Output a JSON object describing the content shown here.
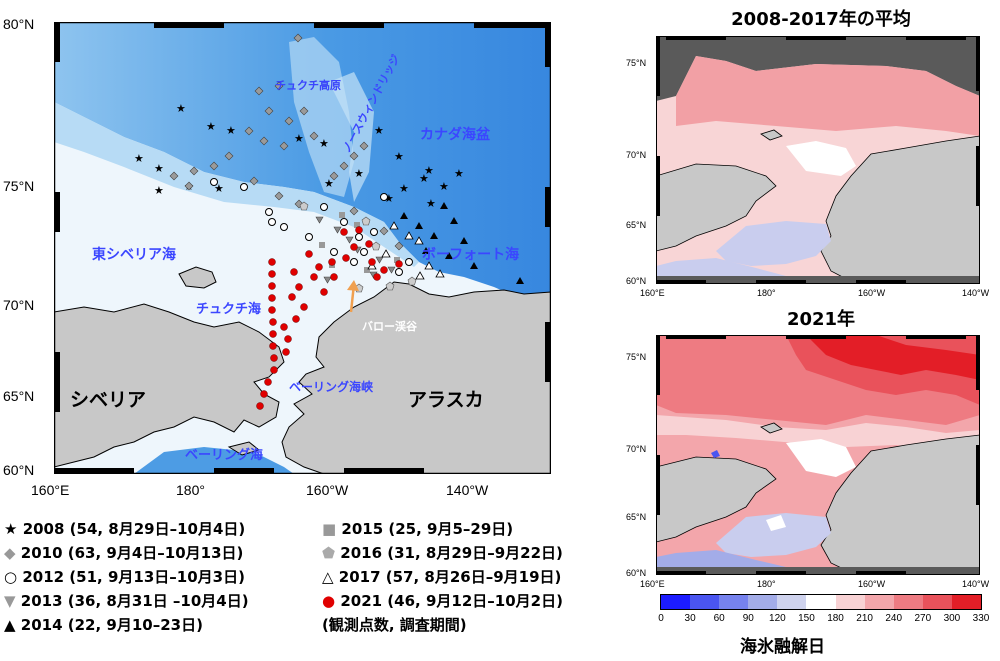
{
  "main_map": {
    "lat_labels": [
      "80°N",
      "75°N",
      "70°N",
      "65°N",
      "60°N"
    ],
    "lon_labels": [
      "160°E",
      "180°",
      "160°W",
      "140°W"
    ],
    "places": {
      "chukchi_plateau": "チュクチ高原",
      "northwind_ridge": "ノースウィンドリッジ",
      "canada_basin": "カナダ海盆",
      "east_siberian_sea": "東シベリア海",
      "beaufort_sea": "ボーフォート海",
      "chukchi_sea": "チュクチ海",
      "barrow_canyon": "バロー渓谷",
      "bering_strait": "ベーリング海峡",
      "bering_sea": "ベーリング海",
      "siberia": "シベリア",
      "alaska": "アラスカ"
    }
  },
  "legend": {
    "rows_left": [
      {
        "symbol": "★",
        "text": "2008 (54, 8月29日–10月4日)"
      },
      {
        "symbol": "◆",
        "text": "2010 (63, 9月4日–10月13日)"
      },
      {
        "symbol": "○",
        "text": "2012 (51, 9月13日–10月3日)"
      },
      {
        "symbol": "▼",
        "text": "2013 (36, 8月31日 –10月4日)"
      },
      {
        "symbol": "▲",
        "text": "2014 (22, 9月10–23日)"
      }
    ],
    "rows_right": [
      {
        "symbol": "■",
        "text": "2015 (25, 9月5–29日)"
      },
      {
        "symbol": "⬟",
        "text": "2016 (31, 8月29日–9月22日)"
      },
      {
        "symbol": "△",
        "text": "2017 (57, 8月26日–9月19日)"
      },
      {
        "symbol": "●",
        "text": "2021 (46, 9月12日–10月2日)"
      }
    ],
    "note": "(観測点数, 調査期間)"
  },
  "inset_top": {
    "title": "2008-2017年の平均",
    "lat_labels": [
      "75°N",
      "70°N",
      "65°N",
      "60°N"
    ],
    "lon_labels": [
      "160°E",
      "180°",
      "160°W",
      "140°W"
    ]
  },
  "inset_bottom": {
    "title": "2021年",
    "lat_labels": [
      "75°N",
      "70°N",
      "65°N",
      "60°N"
    ],
    "lon_labels": [
      "160°E",
      "180°",
      "160°W",
      "140°W"
    ]
  },
  "colorbar": {
    "ticks": [
      "0",
      "30",
      "60",
      "90",
      "120",
      "150",
      "180",
      "210",
      "240",
      "270",
      "300",
      "330"
    ],
    "colors": [
      "#1c1cff",
      "#4a55f0",
      "#7682ee",
      "#a3ace8",
      "#cfd3ee",
      "#ffffff",
      "#f8d2d4",
      "#f3a6ab",
      "#ee7b82",
      "#e9525b",
      "#e31e27"
    ],
    "label": "海氷融解日"
  },
  "colors": {
    "land": "#c8c8c8",
    "shelf": "#e6f2fb",
    "deep_sea": "#3d8fe3",
    "red_station": "#e00000"
  }
}
